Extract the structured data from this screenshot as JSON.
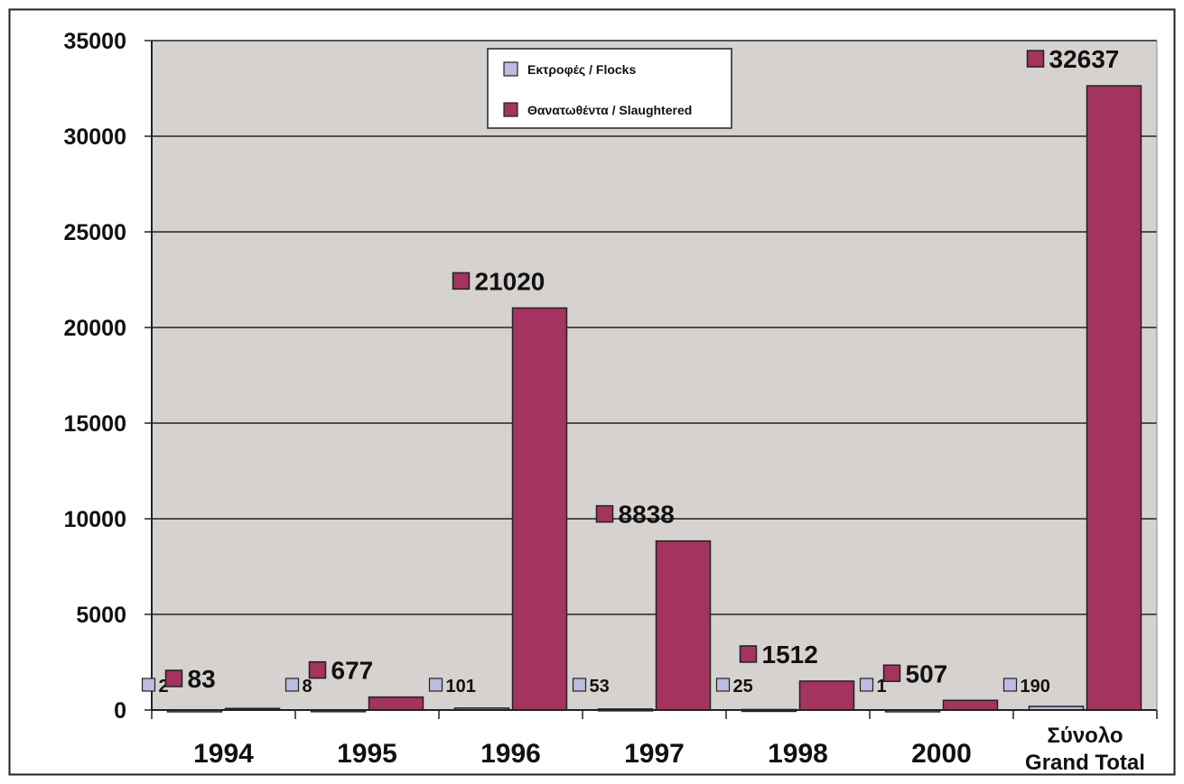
{
  "chart_data": {
    "type": "bar",
    "categories": [
      "1994",
      "1995",
      "1996",
      "1997",
      "1998",
      "2000",
      "Σύνολο\nGrand Total"
    ],
    "series": [
      {
        "name": "Εκτροφές / Flocks",
        "values": [
          2,
          8,
          101,
          53,
          25,
          1,
          190
        ],
        "color": "#bcbbe0"
      },
      {
        "name": "Θανατωθέντα / Slaughtered",
        "values": [
          83,
          677,
          21020,
          8838,
          1512,
          507,
          32637
        ],
        "color": "#a3335f"
      }
    ],
    "ylim": [
      0,
      35000
    ],
    "yticks": [
      0,
      5000,
      10000,
      15000,
      20000,
      25000,
      30000,
      35000
    ],
    "grid": true,
    "legend": "top-center",
    "plot_background": "#d6d2cf"
  }
}
